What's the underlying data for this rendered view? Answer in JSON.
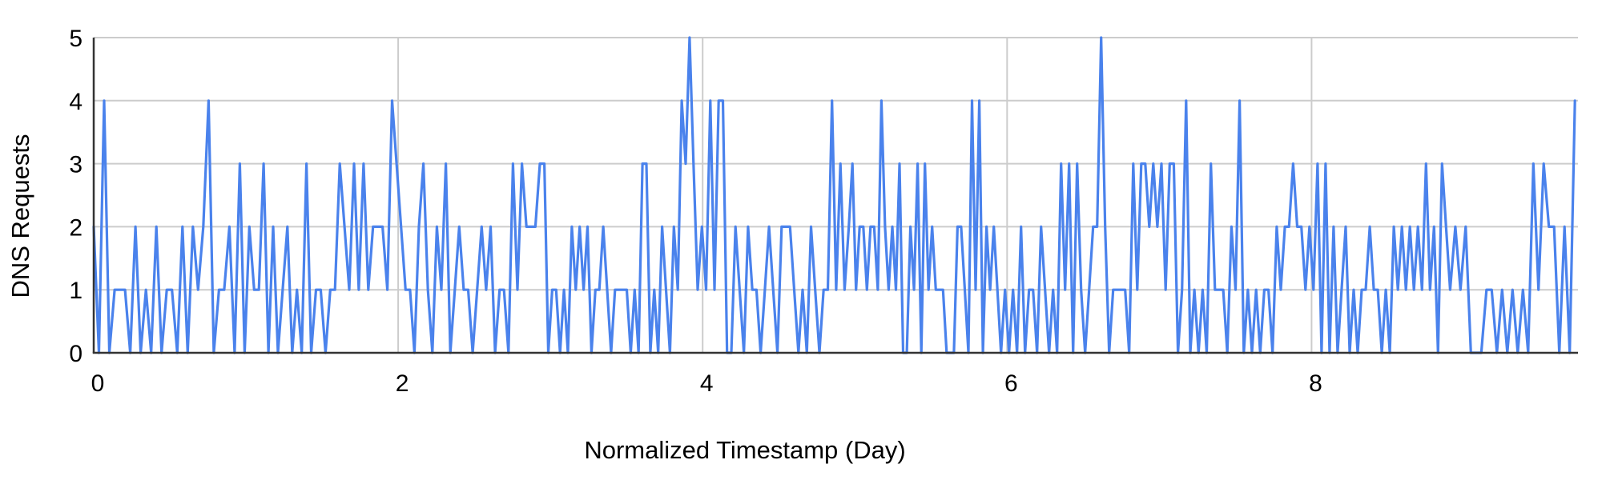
{
  "chart_data": {
    "type": "line",
    "title": "",
    "xlabel": "Normalized Timestamp (Day)",
    "ylabel": "DNS Requests",
    "xlim": [
      0,
      9.75
    ],
    "ylim": [
      0,
      5
    ],
    "x_ticks": [
      0,
      2,
      4,
      6,
      8
    ],
    "y_ticks": [
      0,
      1,
      2,
      3,
      4,
      5
    ],
    "grid": true,
    "legend_position": "none",
    "series_name": "DNS Requests",
    "series_color": "#4a82ec",
    "segments": [
      {
        "x_start": 0.0,
        "x_end": 0.96,
        "values": [
          2,
          0,
          4,
          0,
          1,
          1,
          1,
          0,
          2,
          0,
          1,
          0,
          2,
          0,
          1,
          1,
          0,
          2,
          0,
          2,
          1,
          2,
          4,
          0,
          1,
          1,
          2,
          0
        ]
      },
      {
        "x_start": 0.96,
        "x_end": 1.96,
        "values": [
          3,
          0,
          2,
          1,
          1,
          3,
          0,
          2,
          0,
          1,
          2,
          0,
          1,
          0,
          3,
          0,
          1,
          1,
          0,
          1,
          1,
          3,
          2,
          1,
          3,
          1,
          3,
          1,
          2,
          2,
          2,
          1
        ]
      },
      {
        "x_start": 1.96,
        "x_end": 2.96,
        "values": [
          4,
          3,
          2,
          1,
          1,
          0,
          2,
          3,
          1,
          0,
          2,
          1,
          3,
          0,
          1,
          2,
          1,
          1,
          0,
          1,
          2,
          1,
          2,
          0,
          1,
          1,
          0,
          3,
          1,
          3,
          2,
          2,
          2,
          3
        ]
      },
      {
        "x_start": 2.96,
        "x_end": 3.94,
        "values": [
          3,
          0,
          1,
          1,
          0,
          1,
          0,
          2,
          1,
          2,
          1,
          2,
          0,
          1,
          1,
          2,
          1,
          0,
          1,
          1,
          1,
          1,
          0,
          1,
          0,
          3,
          3,
          0,
          1,
          0,
          2,
          1,
          0,
          2,
          1,
          4,
          3,
          5
        ]
      },
      {
        "x_start": 3.94,
        "x_end": 4.96,
        "values": [
          3,
          1,
          2,
          1,
          4,
          1,
          4,
          4,
          0,
          0,
          2,
          1,
          0,
          2,
          1,
          1,
          0,
          1,
          2,
          1,
          0,
          2,
          2,
          2,
          1,
          0,
          1,
          0,
          2,
          1,
          0,
          1,
          1,
          4,
          1,
          3,
          1
        ]
      },
      {
        "x_start": 4.96,
        "x_end": 5.96,
        "values": [
          2,
          3,
          1,
          2,
          2,
          1,
          2,
          2,
          1,
          4,
          2,
          1,
          2,
          1,
          3,
          0,
          0,
          2,
          1,
          3,
          0,
          3,
          1,
          2,
          1,
          1,
          1,
          0,
          0,
          0,
          2,
          2,
          1,
          0,
          4,
          1,
          4,
          0,
          2,
          1,
          2,
          1
        ]
      },
      {
        "x_start": 5.96,
        "x_end": 6.96,
        "values": [
          0,
          1,
          0,
          1,
          0,
          2,
          0,
          1,
          1,
          0,
          2,
          1,
          0,
          1,
          0,
          3,
          1,
          3,
          0,
          3,
          1,
          0,
          1,
          2,
          2,
          5,
          2,
          0,
          1,
          1,
          1,
          1,
          0,
          3,
          1,
          3,
          3,
          2
        ]
      },
      {
        "x_start": 6.96,
        "x_end": 7.96,
        "values": [
          3,
          2,
          3,
          1,
          3,
          3,
          0,
          1,
          4,
          0,
          1,
          0,
          1,
          0,
          3,
          1,
          1,
          1,
          0,
          2,
          1,
          4,
          0,
          1,
          0,
          1,
          0,
          1,
          1,
          0,
          2,
          1,
          2,
          2,
          3,
          2,
          2
        ]
      },
      {
        "x_start": 7.96,
        "x_end": 8.91,
        "values": [
          1,
          2,
          1,
          3,
          0,
          3,
          0,
          2,
          0,
          1,
          2,
          0,
          1,
          0,
          1,
          1,
          2,
          1,
          1,
          0,
          1,
          0,
          2,
          1,
          2,
          1,
          2,
          1,
          2,
          1,
          3,
          1,
          2,
          0,
          3,
          2
        ]
      },
      {
        "x_start": 8.91,
        "x_end": 9.73,
        "values": [
          1,
          2,
          1,
          2,
          0,
          0,
          0,
          1,
          1,
          0,
          1,
          0,
          1,
          0,
          1,
          0,
          3,
          1,
          3,
          2,
          2,
          0,
          2,
          0,
          4
        ]
      }
    ]
  },
  "colors": {
    "background": "#ffffff",
    "series": "#4a82ec",
    "gridline": "#cccccc",
    "axis": "#333333",
    "text": "#000000"
  }
}
